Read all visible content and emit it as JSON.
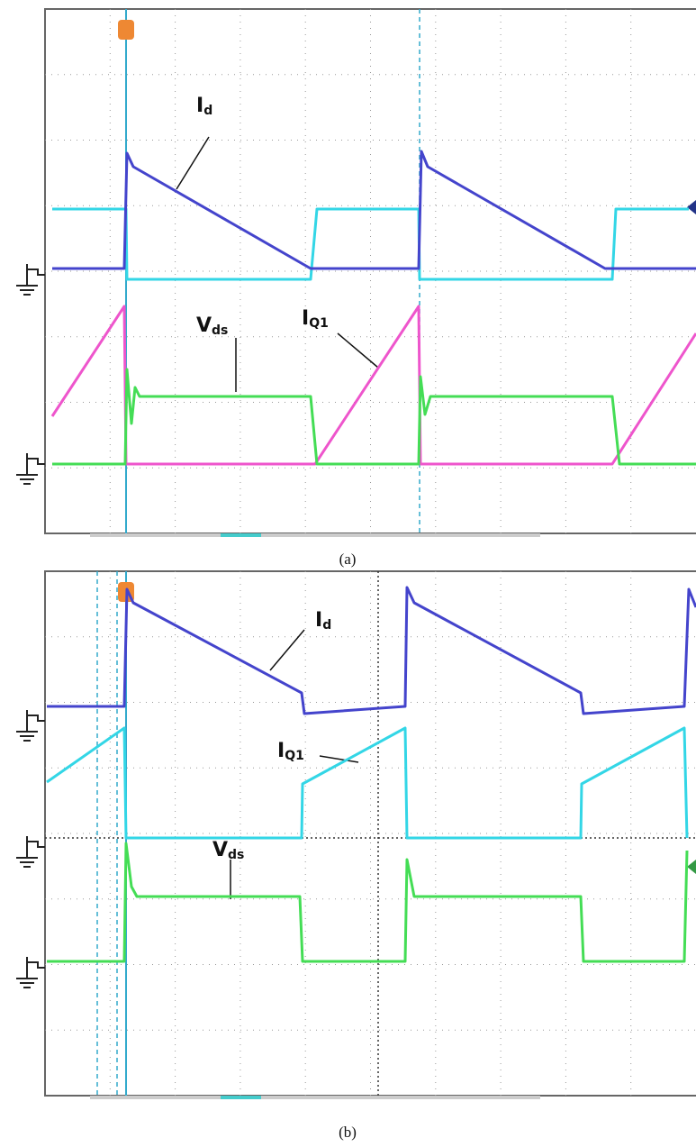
{
  "panels": [
    {
      "caption": "(a)",
      "labels": [
        {
          "main": "I",
          "sub": "d"
        },
        {
          "main": "V",
          "sub": "ds"
        },
        {
          "main": "I",
          "sub": "Q1"
        }
      ]
    },
    {
      "caption": "(b)",
      "labels": [
        {
          "main": "I",
          "sub": "d"
        },
        {
          "main": "V",
          "sub": "ds"
        },
        {
          "main": "I",
          "sub": "Q1"
        }
      ]
    }
  ]
}
